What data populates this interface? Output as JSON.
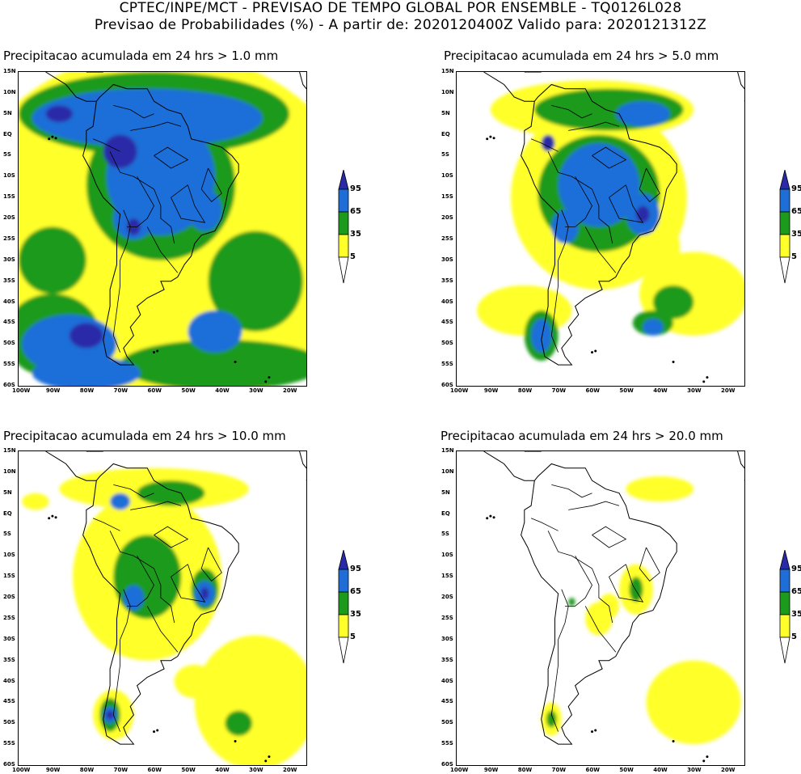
{
  "header": {
    "line1": "CPTEC/INPE/MCT - PREVISAO DE TEMPO GLOBAL POR ENSEMBLE - TQ0126L028",
    "line2": "Previsao de Probabilidades (%) -  A partir de: 2020120400Z  Valido para: 2020121312Z"
  },
  "panels": [
    {
      "id": "p1",
      "title": "Precipitacao acumulada em 24 hrs > 1.0 mm",
      "coverage": "very-high"
    },
    {
      "id": "p2",
      "title": "Precipitacao acumulada em 24 hrs > 5.0 mm",
      "coverage": "high"
    },
    {
      "id": "p3",
      "title": "Precipitacao acumulada em 24 hrs > 10.0 mm",
      "coverage": "medium"
    },
    {
      "id": "p4",
      "title": "Precipitacao acumulada em 24 hrs > 20.0 mm",
      "coverage": "low"
    }
  ],
  "axes": {
    "lat_ticks": [
      "15N",
      "10N",
      "5N",
      "EQ",
      "5S",
      "10S",
      "15S",
      "20S",
      "25S",
      "30S",
      "35S",
      "40S",
      "45S",
      "50S",
      "55S",
      "60S"
    ],
    "lon_ticks": [
      "100W",
      "90W",
      "80W",
      "70W",
      "60W",
      "50W",
      "40W",
      "30W",
      "20W"
    ]
  },
  "legend": {
    "levels": [
      "95",
      "65",
      "35",
      "5"
    ],
    "colors": {
      "level_95": "#2a2aa8",
      "level_65": "#1f6ed8",
      "level_35": "#1c9a1c",
      "level_5": "#ffff2a",
      "outline": "#000000"
    }
  }
}
